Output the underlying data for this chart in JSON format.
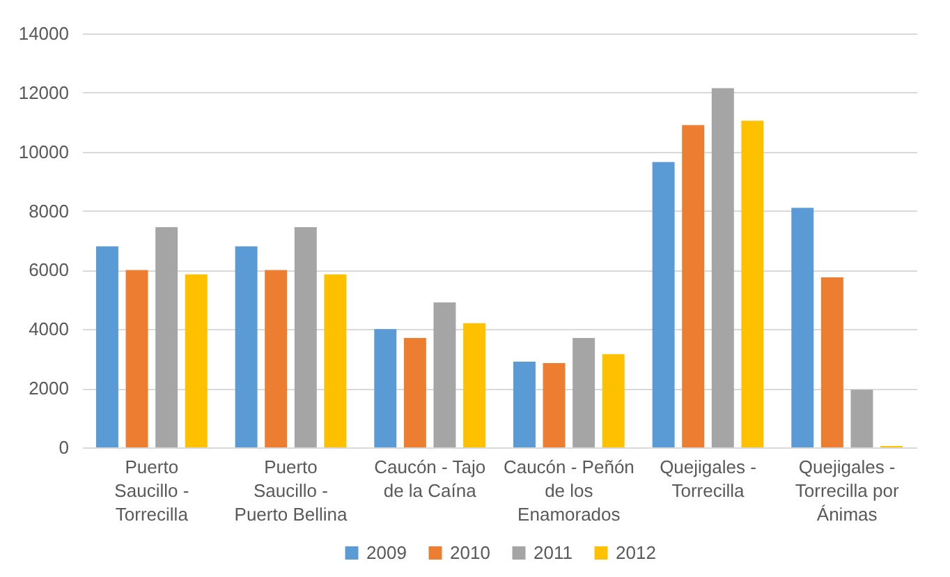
{
  "chart_data": {
    "type": "bar",
    "categories": [
      "Puerto Saucillo - Torrecilla",
      "Puerto Saucillo - Puerto Bellina",
      "Caucón - Tajo de la Caína",
      "Caucón - Peñón de los Enamorados",
      "Quejigales - Torrecilla",
      "Quejigales - Torrecilla por Ánimas"
    ],
    "series": [
      {
        "name": "2009",
        "color": "#5b9bd5",
        "values": [
          6800,
          6800,
          4000,
          2900,
          9650,
          8100
        ]
      },
      {
        "name": "2010",
        "color": "#ed7d31",
        "values": [
          6000,
          6000,
          3700,
          2850,
          10900,
          5750
        ]
      },
      {
        "name": "2011",
        "color": "#a5a5a5",
        "values": [
          7450,
          7450,
          4900,
          3700,
          12150,
          1950
        ]
      },
      {
        "name": "2012",
        "color": "#ffc000",
        "values": [
          5850,
          5850,
          4200,
          3150,
          11050,
          50
        ]
      }
    ],
    "ylim": [
      0,
      14000
    ],
    "yticks": [
      0,
      2000,
      4000,
      6000,
      8000,
      10000,
      12000,
      14000
    ],
    "grid": "y",
    "legend": "bottom"
  }
}
